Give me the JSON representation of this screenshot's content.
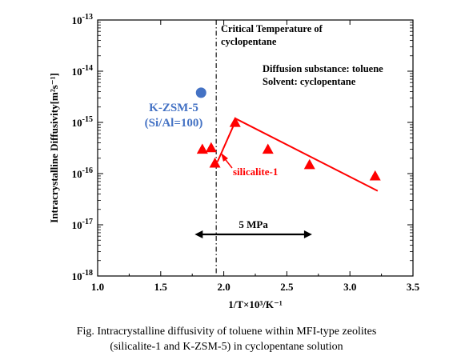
{
  "chart_data": {
    "type": "scatter",
    "xlabel": "1/T×10³/K⁻¹",
    "ylabel": "Intracrystalline Diffusivity[m²s⁻¹]",
    "xlim": [
      1.0,
      3.5
    ],
    "ylim": [
      1e-18,
      1e-13
    ],
    "yscale": "log",
    "grid": false,
    "x_ticks": [
      "1.0",
      "1.5",
      "2.0",
      "2.5",
      "3.0",
      "3.5"
    ],
    "y_ticks": [
      {
        "base": "10",
        "exp": "-18",
        "value": 1e-18
      },
      {
        "base": "10",
        "exp": "-17",
        "value": 1e-17
      },
      {
        "base": "10",
        "exp": "-16",
        "value": 1e-16
      },
      {
        "base": "10",
        "exp": "-15",
        "value": 1e-15
      },
      {
        "base": "10",
        "exp": "-14",
        "value": 1e-14
      },
      {
        "base": "10",
        "exp": "-13",
        "value": 1e-13
      }
    ],
    "series": [
      {
        "name": "silicalite-1",
        "marker": "triangle",
        "color": "#ff0000",
        "points": [
          {
            "x": 1.83,
            "y": 3e-16
          },
          {
            "x": 1.9,
            "y": 3.2e-16
          },
          {
            "x": 1.93,
            "y": 1.6e-16
          },
          {
            "x": 2.09,
            "y": 1e-15
          },
          {
            "x": 2.35,
            "y": 3e-16
          },
          {
            "x": 2.68,
            "y": 1.5e-16
          },
          {
            "x": 3.2,
            "y": 9e-17
          }
        ],
        "fit_line": [
          {
            "x": 2.09,
            "y": 1.2e-15
          },
          {
            "x": 3.22,
            "y": 4.6e-17
          }
        ],
        "connector_line": [
          {
            "x": 1.95,
            "y": 1.7e-16
          },
          {
            "x": 2.08,
            "y": 9e-16
          }
        ]
      },
      {
        "name": "K-ZSM-5",
        "marker": "circle",
        "color": "#4472c4",
        "points": [
          {
            "x": 1.82,
            "y": 3.8e-15
          }
        ]
      }
    ],
    "critical_temperature": {
      "x": 1.94,
      "label_line1": "Critical Temperature of",
      "label_line2": "cyclopentane"
    },
    "pressure_range": {
      "x_start": 1.77,
      "x_end": 2.7,
      "y": 6.5e-18,
      "label": "5 MPa"
    },
    "annotations": {
      "conditions_line1": "Diffusion substance: toluene",
      "conditions_line2": "Solvent: cyclopentane",
      "kzsm_line1": "K-ZSM-5",
      "kzsm_line2": "(Si/Al=100)",
      "silicalite_label": "silicalite-1"
    },
    "colors": {
      "red": "#ff0000",
      "blue": "#4472c4",
      "axis": "#000000"
    }
  },
  "caption": {
    "line1": "Fig. Intracrystalline diffusivity of toluene within MFI-type zeolites",
    "line2": "(silicalite-1 and K-ZSM-5) in cyclopentane solution"
  }
}
